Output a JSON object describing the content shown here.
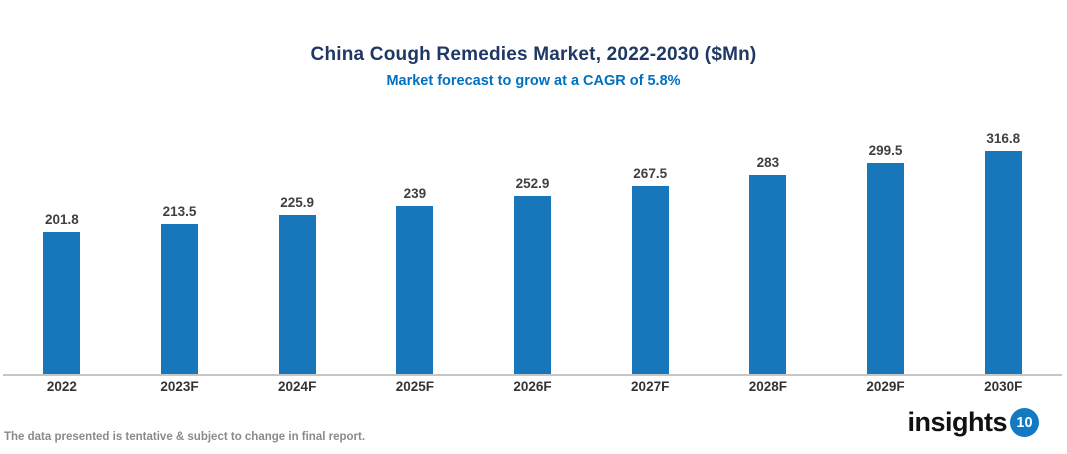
{
  "header": {
    "title": "China Cough Remedies Market, 2022-2030 ($Mn)",
    "subtitle": "Market forecast to grow at a CAGR of 5.8%"
  },
  "chart_data": {
    "type": "bar",
    "title": "China Cough Remedies Market, 2022-2030 ($Mn)",
    "subtitle": "Market forecast to grow at a CAGR of 5.8%",
    "categories": [
      "2022",
      "2023F",
      "2024F",
      "2025F",
      "2026F",
      "2027F",
      "2028F",
      "2029F",
      "2030F"
    ],
    "values": [
      201.8,
      213.5,
      225.9,
      239,
      252.9,
      267.5,
      283,
      299.5,
      316.8
    ],
    "xlabel": "",
    "ylabel": "",
    "ylim": [
      0,
      350
    ],
    "gridlines": false,
    "y_axis_visible": false,
    "data_labels": true,
    "legend": "none"
  },
  "theme": {
    "title_color": "#1F3864",
    "subtitle_color": "#0070C0",
    "bar_color": "#1876BA",
    "value_label_color": "#404040",
    "x_label_color": "#333333",
    "axis_line_color": "#C6C6C6",
    "footer_color": "#8A8A8A",
    "logo_badge_color": "#1279C3"
  },
  "footer": {
    "disclaimer": "The data presented is tentative & subject to change in final report.",
    "logo_text": "insights",
    "logo_badge": "10"
  }
}
